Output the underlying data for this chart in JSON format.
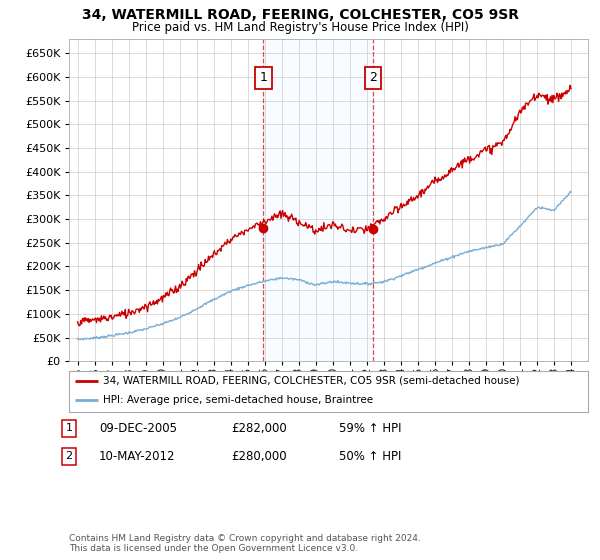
{
  "title": "34, WATERMILL ROAD, FEERING, COLCHESTER, CO5 9SR",
  "subtitle": "Price paid vs. HM Land Registry's House Price Index (HPI)",
  "legend_line1": "34, WATERMILL ROAD, FEERING, COLCHESTER, CO5 9SR (semi-detached house)",
  "legend_line2": "HPI: Average price, semi-detached house, Braintree",
  "footnote": "Contains HM Land Registry data © Crown copyright and database right 2024.\nThis data is licensed under the Open Government Licence v3.0.",
  "sale1_date": "09-DEC-2005",
  "sale1_price": "£282,000",
  "sale1_hpi": "59% ↑ HPI",
  "sale2_date": "10-MAY-2012",
  "sale2_price": "£280,000",
  "sale2_hpi": "50% ↑ HPI",
  "sale1_year": 2005.92,
  "sale2_year": 2012.36,
  "sale1_price_val": 282000,
  "sale2_price_val": 280000,
  "hpi_color": "#7aadd4",
  "price_color": "#cc0000",
  "vline_color": "#cc0000",
  "shade_color": "#ddeeff",
  "ylim_min": 0,
  "ylim_max": 680000,
  "yticks": [
    0,
    50000,
    100000,
    150000,
    200000,
    250000,
    300000,
    350000,
    400000,
    450000,
    500000,
    550000,
    600000,
    650000
  ],
  "xlim_min": 1994.5,
  "xlim_max": 2025.0,
  "background_color": "#ffffff",
  "grid_color": "#cccccc",
  "hpi_base_years": [
    1995,
    1996,
    1997,
    1998,
    1999,
    2000,
    2001,
    2002,
    2003,
    2004,
    2005,
    2006,
    2007,
    2008,
    2009,
    2010,
    2011,
    2012,
    2013,
    2014,
    2015,
    2016,
    2017,
    2018,
    2019,
    2020,
    2021,
    2022,
    2023,
    2024
  ],
  "hpi_base_vals": [
    46000,
    49000,
    54000,
    60000,
    68000,
    79000,
    92000,
    111000,
    130000,
    148000,
    160000,
    169000,
    176000,
    172000,
    161000,
    168000,
    165000,
    163000,
    168000,
    180000,
    194000,
    207000,
    220000,
    232000,
    240000,
    248000,
    285000,
    325000,
    318000,
    358000
  ],
  "price_base_years": [
    1995,
    1996,
    1997,
    1998,
    1999,
    2000,
    2001,
    2002,
    2003,
    2004,
    2005,
    2006,
    2007,
    2008,
    2009,
    2010,
    2011,
    2012,
    2013,
    2014,
    2015,
    2016,
    2017,
    2018,
    2019,
    2020,
    2021,
    2022,
    2023,
    2024
  ],
  "price_base_vals": [
    83000,
    87000,
    93000,
    102000,
    116000,
    133000,
    158000,
    191000,
    225000,
    258000,
    278000,
    296000,
    310000,
    295000,
    275000,
    288000,
    275000,
    278000,
    300000,
    325000,
    350000,
    378000,
    405000,
    428000,
    445000,
    462000,
    525000,
    565000,
    552000,
    575000
  ],
  "noise_std": 4500,
  "noise_seed": 7
}
